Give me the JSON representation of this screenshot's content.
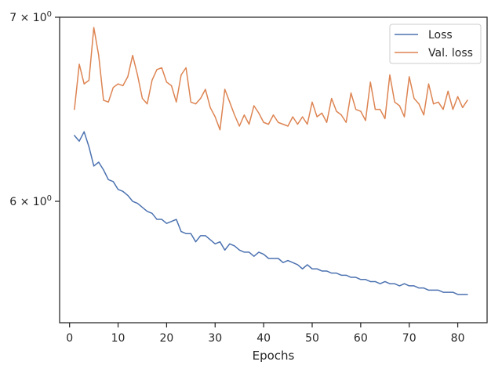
{
  "chart_data": {
    "type": "line",
    "title": "",
    "xlabel": "Epochs",
    "ylabel": "",
    "xlim": [
      -2.05,
      86.05
    ],
    "ylim": [
      5.42,
      7.0
    ],
    "yscale": "log",
    "x_ticks": [
      0,
      10,
      20,
      30,
      40,
      50,
      60,
      70,
      80
    ],
    "x_tick_labels": [
      "0",
      "10",
      "20",
      "30",
      "40",
      "50",
      "60",
      "70",
      "80"
    ],
    "y_ticks": [
      {
        "value": 7.0,
        "mantissa": "7",
        "exponent": "0"
      },
      {
        "value": 6.0,
        "mantissa": "6",
        "exponent": "0"
      }
    ],
    "grid": false,
    "legend_position": "top-right",
    "x": [
      1,
      2,
      3,
      4,
      5,
      6,
      7,
      8,
      9,
      10,
      11,
      12,
      13,
      14,
      15,
      16,
      17,
      18,
      19,
      20,
      21,
      22,
      23,
      24,
      25,
      26,
      27,
      28,
      29,
      30,
      31,
      32,
      33,
      34,
      35,
      36,
      37,
      38,
      39,
      40,
      41,
      42,
      43,
      44,
      45,
      46,
      47,
      48,
      49,
      50,
      51,
      52,
      53,
      54,
      55,
      56,
      57,
      58,
      59,
      60,
      61,
      62,
      63,
      64,
      65,
      66,
      67,
      68,
      69,
      70,
      71,
      72,
      73,
      74,
      75,
      76,
      77,
      78,
      79,
      80,
      81,
      82
    ],
    "series": [
      {
        "name": "Loss",
        "color": "#4c72b0",
        "values": [
          6.34,
          6.31,
          6.36,
          6.28,
          6.18,
          6.2,
          6.16,
          6.11,
          6.1,
          6.06,
          6.05,
          6.03,
          6.0,
          5.99,
          5.97,
          5.95,
          5.94,
          5.91,
          5.91,
          5.89,
          5.9,
          5.91,
          5.85,
          5.84,
          5.84,
          5.8,
          5.83,
          5.83,
          5.81,
          5.79,
          5.8,
          5.76,
          5.79,
          5.78,
          5.76,
          5.75,
          5.75,
          5.73,
          5.75,
          5.74,
          5.72,
          5.72,
          5.72,
          5.7,
          5.71,
          5.7,
          5.69,
          5.67,
          5.69,
          5.67,
          5.67,
          5.66,
          5.66,
          5.65,
          5.65,
          5.64,
          5.64,
          5.63,
          5.63,
          5.62,
          5.62,
          5.61,
          5.61,
          5.6,
          5.61,
          5.6,
          5.6,
          5.59,
          5.6,
          5.59,
          5.59,
          5.58,
          5.58,
          5.57,
          5.57,
          5.57,
          5.56,
          5.56,
          5.56,
          5.55,
          5.55,
          5.55
        ]
      },
      {
        "name": "Val. loss",
        "color": "#dd8452",
        "values": [
          6.48,
          6.73,
          6.62,
          6.64,
          6.94,
          6.78,
          6.53,
          6.52,
          6.6,
          6.62,
          6.61,
          6.66,
          6.78,
          6.67,
          6.54,
          6.51,
          6.64,
          6.7,
          6.71,
          6.63,
          6.61,
          6.52,
          6.67,
          6.71,
          6.52,
          6.51,
          6.54,
          6.59,
          6.49,
          6.44,
          6.37,
          6.59,
          6.52,
          6.45,
          6.39,
          6.45,
          6.4,
          6.5,
          6.46,
          6.41,
          6.4,
          6.45,
          6.41,
          6.4,
          6.39,
          6.44,
          6.4,
          6.44,
          6.4,
          6.52,
          6.44,
          6.46,
          6.41,
          6.54,
          6.47,
          6.45,
          6.41,
          6.57,
          6.48,
          6.47,
          6.42,
          6.63,
          6.48,
          6.48,
          6.43,
          6.67,
          6.52,
          6.5,
          6.44,
          6.66,
          6.54,
          6.51,
          6.45,
          6.62,
          6.51,
          6.52,
          6.48,
          6.58,
          6.48,
          6.55,
          6.49,
          6.53
        ]
      }
    ]
  }
}
